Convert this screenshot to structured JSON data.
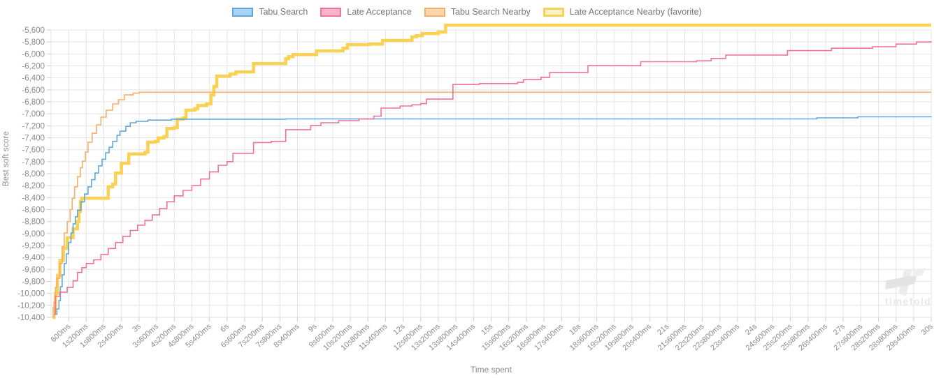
{
  "watermark": {
    "text": "timefold"
  },
  "chart_data": {
    "type": "line",
    "variant": "step-after",
    "title": "",
    "xlabel": "Time spent",
    "ylabel": "Best soft score",
    "grid": true,
    "legend_position": "top",
    "xlim_seconds": [
      0,
      30
    ],
    "ylim": [
      -10400,
      -5600
    ],
    "y_tick_step": 200,
    "y_ticks": [
      "-5,600",
      "-5,800",
      "-6,000",
      "-6,200",
      "-6,400",
      "-6,600",
      "-6,800",
      "-7,000",
      "-7,200",
      "-7,400",
      "-7,600",
      "-7,800",
      "-8,000",
      "-8,200",
      "-8,400",
      "-8,600",
      "-8,800",
      "-9,000",
      "-9,200",
      "-9,400",
      "-9,600",
      "-9,800",
      "-10,000",
      "-10,200",
      "-10,400"
    ],
    "x_ticks": [
      {
        "t": 0.6,
        "label": "600ms"
      },
      {
        "t": 1.2,
        "label": "1s200ms"
      },
      {
        "t": 1.8,
        "label": "1s800ms"
      },
      {
        "t": 2.4,
        "label": "2s400ms"
      },
      {
        "t": 3,
        "label": "3s"
      },
      {
        "t": 3.6,
        "label": "3s600ms"
      },
      {
        "t": 4.2,
        "label": "4s200ms"
      },
      {
        "t": 4.8,
        "label": "4s800ms"
      },
      {
        "t": 5.4,
        "label": "5s400ms"
      },
      {
        "t": 6,
        "label": "6s"
      },
      {
        "t": 6.6,
        "label": "6s600ms"
      },
      {
        "t": 7.2,
        "label": "7s200ms"
      },
      {
        "t": 7.8,
        "label": "7s800ms"
      },
      {
        "t": 8.4,
        "label": "8s400ms"
      },
      {
        "t": 9,
        "label": "9s"
      },
      {
        "t": 9.6,
        "label": "9s600ms"
      },
      {
        "t": 10.2,
        "label": "10s200ms"
      },
      {
        "t": 10.8,
        "label": "10s800ms"
      },
      {
        "t": 11.4,
        "label": "11s400ms"
      },
      {
        "t": 12,
        "label": "12s"
      },
      {
        "t": 12.6,
        "label": "12s600ms"
      },
      {
        "t": 13.2,
        "label": "13s200ms"
      },
      {
        "t": 13.8,
        "label": "13s800ms"
      },
      {
        "t": 14.4,
        "label": "14s400ms"
      },
      {
        "t": 15,
        "label": "15s"
      },
      {
        "t": 15.6,
        "label": "15s600ms"
      },
      {
        "t": 16.2,
        "label": "16s200ms"
      },
      {
        "t": 16.8,
        "label": "16s800ms"
      },
      {
        "t": 17.4,
        "label": "17s400ms"
      },
      {
        "t": 18,
        "label": "18s"
      },
      {
        "t": 18.6,
        "label": "18s600ms"
      },
      {
        "t": 19.2,
        "label": "19s200ms"
      },
      {
        "t": 19.8,
        "label": "19s800ms"
      },
      {
        "t": 20.4,
        "label": "20s400ms"
      },
      {
        "t": 21,
        "label": "21s"
      },
      {
        "t": 21.6,
        "label": "21s600ms"
      },
      {
        "t": 22.2,
        "label": "22s200ms"
      },
      {
        "t": 22.8,
        "label": "22s800ms"
      },
      {
        "t": 23.4,
        "label": "23s400ms"
      },
      {
        "t": 24,
        "label": "24s"
      },
      {
        "t": 24.6,
        "label": "24s600ms"
      },
      {
        "t": 25.2,
        "label": "25s200ms"
      },
      {
        "t": 25.8,
        "label": "25s800ms"
      },
      {
        "t": 26.4,
        "label": "26s400ms"
      },
      {
        "t": 27,
        "label": "27s"
      },
      {
        "t": 27.6,
        "label": "27s600ms"
      },
      {
        "t": 28.2,
        "label": "28s200ms"
      },
      {
        "t": 28.8,
        "label": "28s800ms"
      },
      {
        "t": 29.4,
        "label": "29s400ms"
      },
      {
        "t": 30,
        "label": "30s"
      }
    ],
    "series": [
      {
        "name": "Tabu Search",
        "color": "#5FA8DC",
        "fill": "#A9D3F0",
        "line_width": 1.6,
        "points": [
          [
            0.15,
            -10350
          ],
          [
            0.2,
            -10260
          ],
          [
            0.27,
            -10120
          ],
          [
            0.32,
            -9890
          ],
          [
            0.38,
            -9690
          ],
          [
            0.45,
            -9500
          ],
          [
            0.52,
            -9340
          ],
          [
            0.6,
            -9150
          ],
          [
            0.68,
            -8990
          ],
          [
            0.75,
            -8840
          ],
          [
            0.83,
            -8720
          ],
          [
            0.9,
            -8610
          ],
          [
            1.02,
            -8470
          ],
          [
            1.14,
            -8340
          ],
          [
            1.26,
            -8220
          ],
          [
            1.38,
            -8100
          ],
          [
            1.5,
            -7990
          ],
          [
            1.62,
            -7870
          ],
          [
            1.74,
            -7760
          ],
          [
            1.86,
            -7650
          ],
          [
            1.98,
            -7560
          ],
          [
            2.1,
            -7460
          ],
          [
            2.25,
            -7360
          ],
          [
            2.35,
            -7290
          ],
          [
            2.55,
            -7210
          ],
          [
            2.7,
            -7150
          ],
          [
            2.9,
            -7125
          ],
          [
            3.3,
            -7105
          ],
          [
            4.1,
            -7090
          ],
          [
            8,
            -7085
          ],
          [
            26.1,
            -7068
          ],
          [
            27.5,
            -7050
          ],
          [
            30,
            -7045
          ]
        ]
      },
      {
        "name": "Late Acceptance",
        "color": "#EF7299",
        "fill": "#F8B4C9",
        "line_width": 1.6,
        "points": [
          [
            0.1,
            -10350
          ],
          [
            0.15,
            -10050
          ],
          [
            0.3,
            -9980
          ],
          [
            0.55,
            -9900
          ],
          [
            0.75,
            -9790
          ],
          [
            0.9,
            -9650
          ],
          [
            1.05,
            -9570
          ],
          [
            1.2,
            -9500
          ],
          [
            1.45,
            -9440
          ],
          [
            1.7,
            -9350
          ],
          [
            1.95,
            -9250
          ],
          [
            2.2,
            -9150
          ],
          [
            2.45,
            -9050
          ],
          [
            2.7,
            -8950
          ],
          [
            2.95,
            -8860
          ],
          [
            3.2,
            -8780
          ],
          [
            3.45,
            -8690
          ],
          [
            3.7,
            -8580
          ],
          [
            3.95,
            -8470
          ],
          [
            4.2,
            -8370
          ],
          [
            4.5,
            -8280
          ],
          [
            4.8,
            -8200
          ],
          [
            5.1,
            -8090
          ],
          [
            5.4,
            -7970
          ],
          [
            5.7,
            -7860
          ],
          [
            6.0,
            -7800
          ],
          [
            6.2,
            -7660
          ],
          [
            6.9,
            -7480
          ],
          [
            7.5,
            -7460
          ],
          [
            8.0,
            -7265
          ],
          [
            8.85,
            -7195
          ],
          [
            9.2,
            -7150
          ],
          [
            9.8,
            -7115
          ],
          [
            10.5,
            -7085
          ],
          [
            11.0,
            -7040
          ],
          [
            11.25,
            -6905
          ],
          [
            11.9,
            -6870
          ],
          [
            12.3,
            -6850
          ],
          [
            12.6,
            -6830
          ],
          [
            12.8,
            -6755
          ],
          [
            13.7,
            -6510
          ],
          [
            14.6,
            -6495
          ],
          [
            15.9,
            -6475
          ],
          [
            16.1,
            -6430
          ],
          [
            16.7,
            -6390
          ],
          [
            17.0,
            -6310
          ],
          [
            18.3,
            -6195
          ],
          [
            20.1,
            -6130
          ],
          [
            22.0,
            -6115
          ],
          [
            22.5,
            -6075
          ],
          [
            23.0,
            -6020
          ],
          [
            25.1,
            -5945
          ],
          [
            26.6,
            -5905
          ],
          [
            28.0,
            -5880
          ],
          [
            28.8,
            -5835
          ],
          [
            29.5,
            -5800
          ],
          [
            30,
            -5790
          ]
        ]
      },
      {
        "name": "Tabu Search Nearby",
        "color": "#F7AE68",
        "fill": "#FBD6AB",
        "line_width": 1.6,
        "points": [
          [
            0.05,
            -10400
          ],
          [
            0.1,
            -10150
          ],
          [
            0.15,
            -9900
          ],
          [
            0.2,
            -9750
          ],
          [
            0.3,
            -9500
          ],
          [
            0.38,
            -9220
          ],
          [
            0.45,
            -8990
          ],
          [
            0.55,
            -8800
          ],
          [
            0.65,
            -8600
          ],
          [
            0.72,
            -8410
          ],
          [
            0.8,
            -8220
          ],
          [
            0.9,
            -8050
          ],
          [
            1.0,
            -7900
          ],
          [
            1.07,
            -7790
          ],
          [
            1.17,
            -7640
          ],
          [
            1.26,
            -7475
          ],
          [
            1.4,
            -7325
          ],
          [
            1.55,
            -7185
          ],
          [
            1.7,
            -7055
          ],
          [
            1.88,
            -6940
          ],
          [
            2.1,
            -6835
          ],
          [
            2.3,
            -6765
          ],
          [
            2.5,
            -6685
          ],
          [
            2.8,
            -6655
          ],
          [
            3.0,
            -6640
          ],
          [
            30,
            -6640
          ]
        ]
      },
      {
        "name": "Late Acceptance Nearby (favorite)",
        "color": "#F8D155",
        "fill": "#FCF2C9",
        "line_width": 4.5,
        "points": [
          [
            0.05,
            -10400
          ],
          [
            0.1,
            -10250
          ],
          [
            0.15,
            -10000
          ],
          [
            0.22,
            -9700
          ],
          [
            0.3,
            -9450
          ],
          [
            0.42,
            -9250
          ],
          [
            0.55,
            -9070
          ],
          [
            0.75,
            -8920
          ],
          [
            0.9,
            -8800
          ],
          [
            0.95,
            -8630
          ],
          [
            1.0,
            -8465
          ],
          [
            1.05,
            -8410
          ],
          [
            1.95,
            -8220
          ],
          [
            2.1,
            -8175
          ],
          [
            2.2,
            -7990
          ],
          [
            2.4,
            -7825
          ],
          [
            2.65,
            -7670
          ],
          [
            3.2,
            -7640
          ],
          [
            3.3,
            -7475
          ],
          [
            3.55,
            -7460
          ],
          [
            3.65,
            -7405
          ],
          [
            3.85,
            -7380
          ],
          [
            3.95,
            -7245
          ],
          [
            4.2,
            -7230
          ],
          [
            4.3,
            -7090
          ],
          [
            4.5,
            -7070
          ],
          [
            4.6,
            -6940
          ],
          [
            4.9,
            -6915
          ],
          [
            5.0,
            -6860
          ],
          [
            5.3,
            -6835
          ],
          [
            5.45,
            -6685
          ],
          [
            5.55,
            -6545
          ],
          [
            5.65,
            -6370
          ],
          [
            6.1,
            -6335
          ],
          [
            6.3,
            -6300
          ],
          [
            6.9,
            -6160
          ],
          [
            8.0,
            -6080
          ],
          [
            8.1,
            -6045
          ],
          [
            8.25,
            -6010
          ],
          [
            9.05,
            -5950
          ],
          [
            9.95,
            -5905
          ],
          [
            10.1,
            -5845
          ],
          [
            10.85,
            -5835
          ],
          [
            11.3,
            -5775
          ],
          [
            12.3,
            -5715
          ],
          [
            12.45,
            -5695
          ],
          [
            12.65,
            -5660
          ],
          [
            13.2,
            -5635
          ],
          [
            13.45,
            -5520
          ],
          [
            30,
            -5520
          ]
        ]
      }
    ],
    "colors": {
      "grid": "#E4E4E4",
      "tick": "#CFCFCF",
      "tick_text": "#8A8A8A",
      "watermark": "#E8E8E8"
    }
  }
}
